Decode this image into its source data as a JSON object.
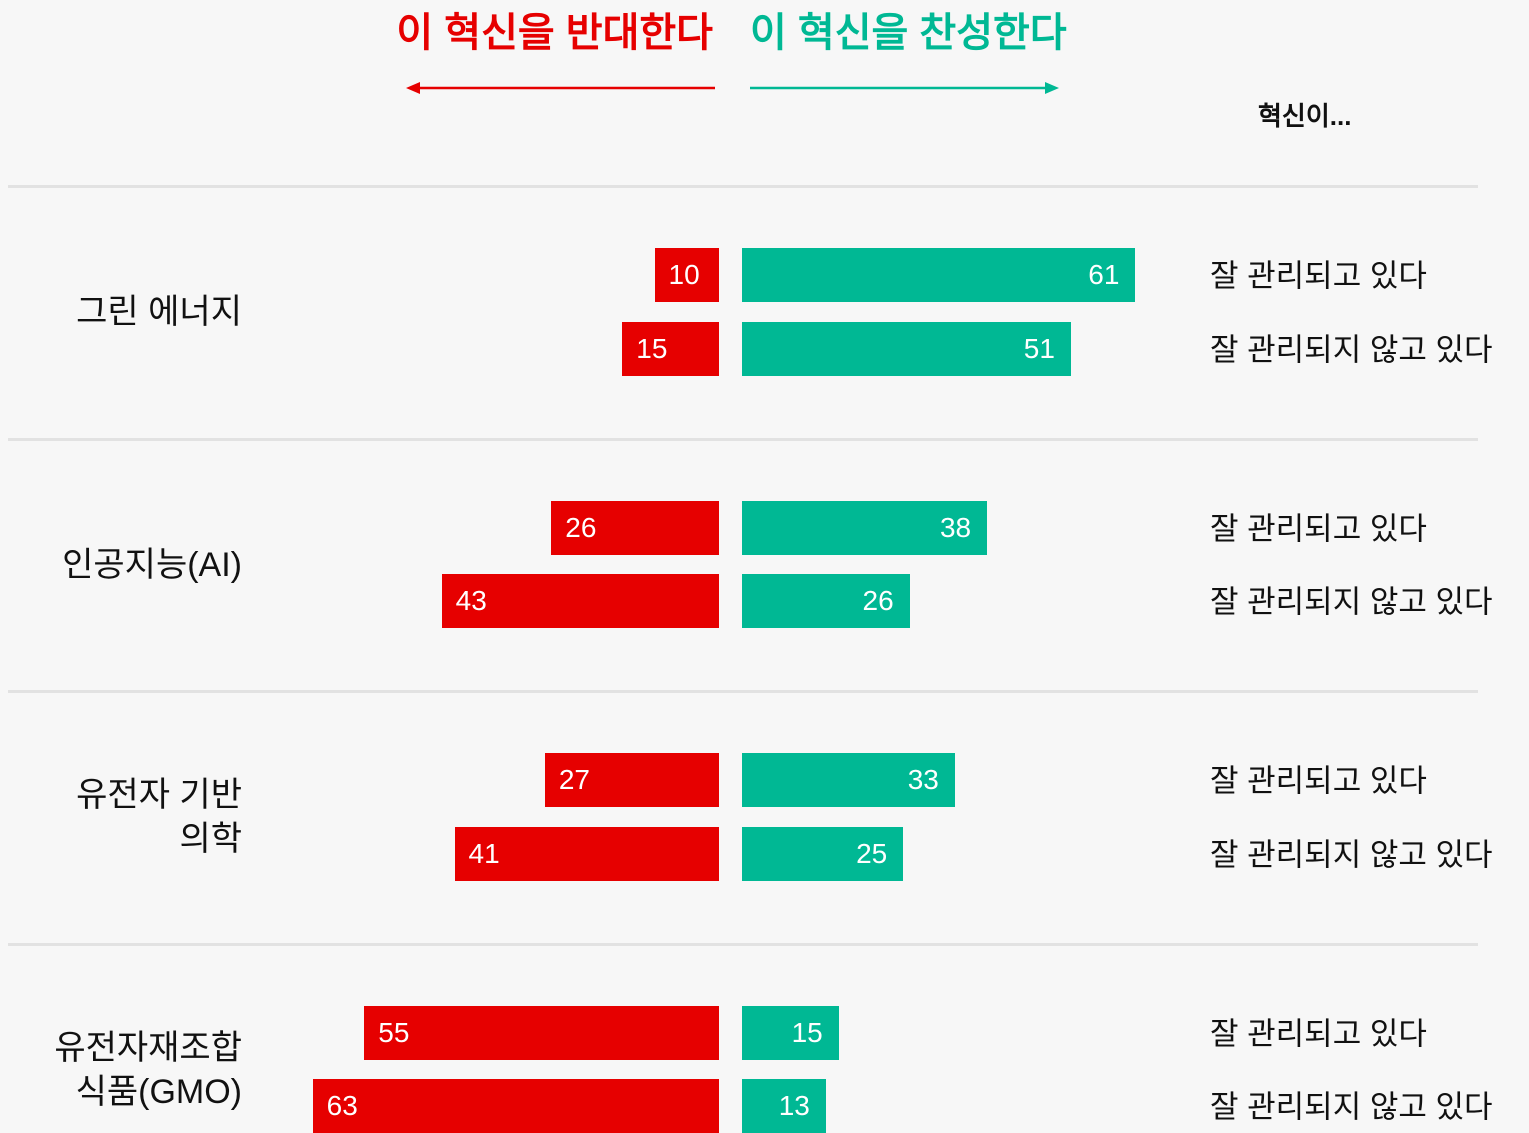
{
  "chart_data": {
    "type": "diverging_bar",
    "header": "혁신이...",
    "subgroups": [
      "잘 관리되고 있다",
      "잘 관리되지 않고 있다"
    ],
    "series": [
      {
        "name": "이 혁신을 반대한다",
        "color": "#e60000",
        "side": "left"
      },
      {
        "name": "이 혁신을 찬성한다",
        "color": "#00b894",
        "side": "right"
      }
    ],
    "categories": [
      "그린 에너지",
      "인공지능(AI)",
      "유전자 기반 의학",
      "유전자재조합 식품(GMO)"
    ],
    "values": [
      [
        [
          10,
          15
        ],
        [
          61,
          51
        ]
      ],
      [
        [
          26,
          43
        ],
        [
          38,
          26
        ]
      ],
      [
        [
          27,
          41
        ],
        [
          33,
          25
        ]
      ],
      [
        [
          55,
          63
        ],
        [
          15,
          13
        ]
      ]
    ]
  }
}
